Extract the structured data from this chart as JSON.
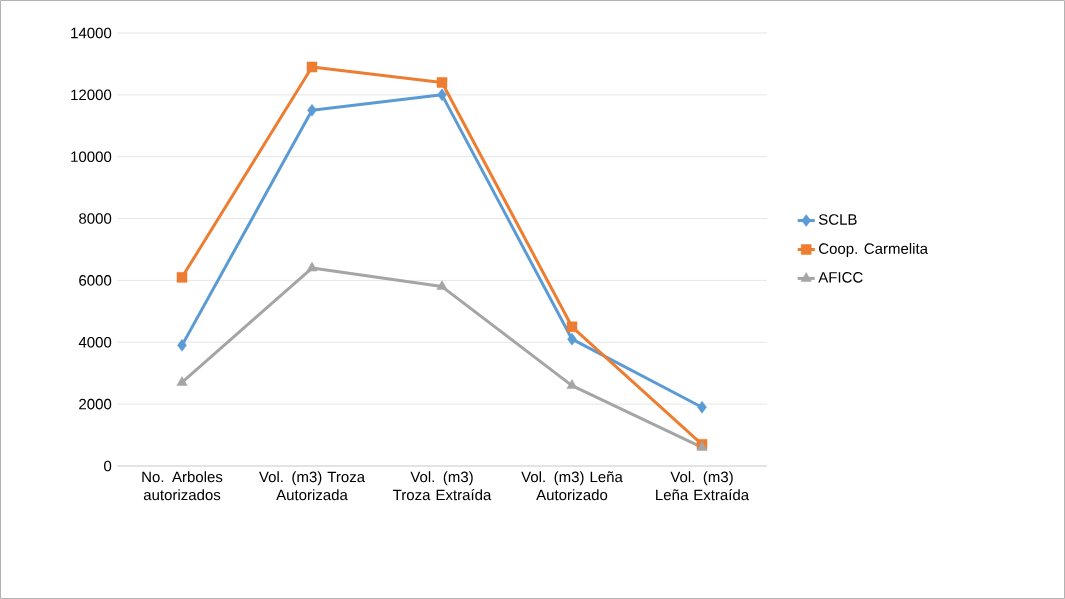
{
  "chart_data": {
    "type": "line",
    "categories": [
      "No. Arboles autorizados",
      "Vol. (m3) Troza Autorizada",
      "Vol. (m3) Troza Extraída",
      "Vol. (m3) Leña Autorizado",
      "Vol. (m3) Leña Extraída"
    ],
    "series": [
      {
        "name": "SCLB",
        "color": "#5b9bd5",
        "marker": "diamond",
        "values": [
          3900,
          11500,
          12000,
          4100,
          1900
        ]
      },
      {
        "name": "Coop. Carmelita",
        "color": "#ed7d31",
        "marker": "square",
        "values": [
          6100,
          12900,
          12400,
          4500,
          700
        ]
      },
      {
        "name": "AFICC",
        "color": "#a5a5a5",
        "marker": "triangle",
        "values": [
          2700,
          6400,
          5800,
          2600,
          600
        ]
      }
    ],
    "ylim": [
      0,
      14000
    ],
    "yticks": [
      0,
      2000,
      4000,
      6000,
      8000,
      10000,
      12000,
      14000
    ],
    "grid": "y",
    "legend": "right"
  }
}
